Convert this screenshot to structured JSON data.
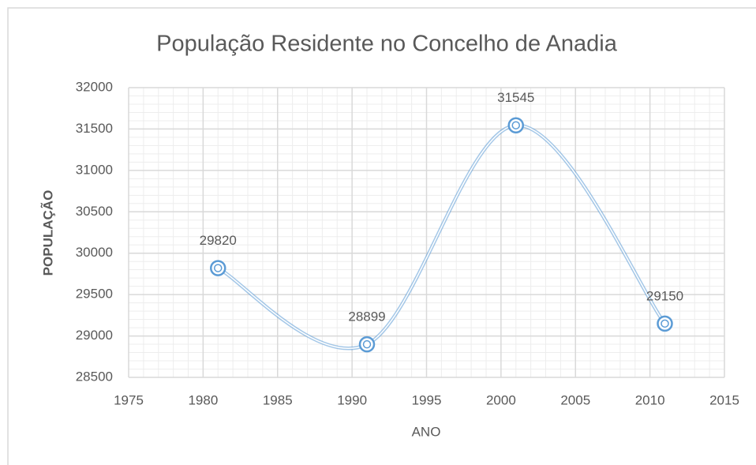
{
  "chart_data": {
    "type": "line",
    "smooth": true,
    "title": "População Residente no Concelho de Anadia",
    "x_label": "ANO",
    "y_label": "POPULAÇÃO",
    "x": [
      1981,
      1991,
      2001,
      2011
    ],
    "series": [
      {
        "color": "#5b9bd5",
        "values": [
          29820,
          28899,
          31545,
          29150
        ]
      }
    ],
    "xlim": [
      1975,
      2015
    ],
    "xticks": [
      1975,
      1980,
      1985,
      1990,
      1995,
      2000,
      2005,
      2010,
      2015
    ],
    "ylim": [
      28500,
      32000
    ],
    "yticks": [
      28500,
      29000,
      29500,
      30000,
      30500,
      31000,
      31500,
      32000
    ],
    "grid": true,
    "minor_grid": true,
    "data_labels": true
  }
}
